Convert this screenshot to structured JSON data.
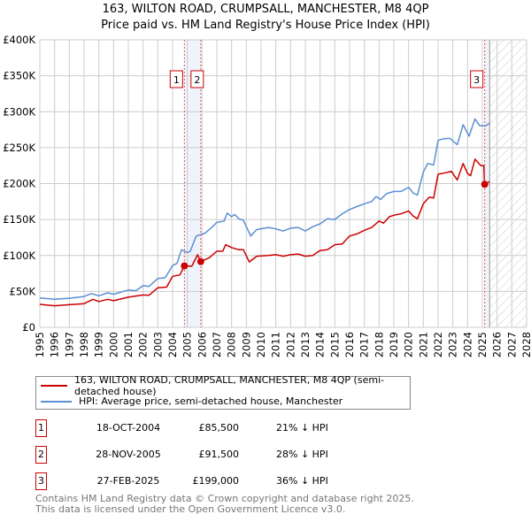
{
  "chart_data": {
    "type": "line",
    "title": "163, WILTON ROAD, CRUMPSALL, MANCHESTER, M8 4QP",
    "subtitle": "Price paid vs. HM Land Registry's House Price Index (HPI)",
    "xlim": [
      1995,
      2028
    ],
    "ylim": [
      0,
      400000
    ],
    "x_ticks": [
      "1995",
      "1996",
      "1997",
      "1998",
      "1999",
      "2000",
      "2001",
      "2002",
      "2003",
      "2004",
      "2005",
      "2006",
      "2007",
      "2008",
      "2009",
      "2010",
      "2011",
      "2012",
      "2013",
      "2014",
      "2015",
      "2016",
      "2017",
      "2018",
      "2019",
      "2020",
      "2021",
      "2022",
      "2023",
      "2024",
      "2025",
      "2026",
      "2027",
      "2028"
    ],
    "y_ticks": [
      {
        "v": 0,
        "label": "£0"
      },
      {
        "v": 50000,
        "label": "£50K"
      },
      {
        "v": 100000,
        "label": "£100K"
      },
      {
        "v": 150000,
        "label": "£150K"
      },
      {
        "v": 200000,
        "label": "£200K"
      },
      {
        "v": 250000,
        "label": "£250K"
      },
      {
        "v": 300000,
        "label": "£300K"
      },
      {
        "v": 350000,
        "label": "£350K"
      },
      {
        "v": 400000,
        "label": "£400K"
      }
    ],
    "grid": true,
    "forecast_from": 2025.5,
    "series": [
      {
        "name": "163, WILTON ROAD, CRUMPSALL, MANCHESTER, M8 4QP (semi-detached house)",
        "color": "#cc0000",
        "points": [
          [
            1995,
            32000
          ],
          [
            1996,
            30000
          ],
          [
            1997,
            31500
          ],
          [
            1998,
            33000
          ],
          [
            1998.6,
            39000
          ],
          [
            1999,
            36000
          ],
          [
            1999.6,
            39000
          ],
          [
            2000,
            37000
          ],
          [
            2001,
            42000
          ],
          [
            2002,
            45000
          ],
          [
            2002.4,
            44500
          ],
          [
            2003,
            55000
          ],
          [
            2003.6,
            56000
          ],
          [
            2004,
            71000
          ],
          [
            2004.5,
            73000
          ],
          [
            2004.8,
            85500
          ],
          [
            2005.3,
            85000
          ],
          [
            2005.7,
            101000
          ],
          [
            2005.9,
            91500
          ],
          [
            2006.5,
            97000
          ],
          [
            2007,
            106000
          ],
          [
            2007.4,
            106000
          ],
          [
            2007.6,
            115000
          ],
          [
            2008,
            111000
          ],
          [
            2008.5,
            108000
          ],
          [
            2008.8,
            108000
          ],
          [
            2009.2,
            91000
          ],
          [
            2009.7,
            99000
          ],
          [
            2010.5,
            100000
          ],
          [
            2011,
            101000
          ],
          [
            2011.5,
            99000
          ],
          [
            2012,
            101000
          ],
          [
            2012.5,
            102000
          ],
          [
            2013,
            99000
          ],
          [
            2013.5,
            100000
          ],
          [
            2014,
            107000
          ],
          [
            2014.5,
            108000
          ],
          [
            2015,
            115000
          ],
          [
            2015.5,
            116000
          ],
          [
            2016,
            127000
          ],
          [
            2016.5,
            130000
          ],
          [
            2017,
            135000
          ],
          [
            2017.5,
            139000
          ],
          [
            2018,
            148000
          ],
          [
            2018.3,
            145000
          ],
          [
            2018.7,
            154000
          ],
          [
            2019,
            156000
          ],
          [
            2019.5,
            158000
          ],
          [
            2020,
            162000
          ],
          [
            2020.3,
            155000
          ],
          [
            2020.6,
            151000
          ],
          [
            2021,
            172000
          ],
          [
            2021.4,
            181000
          ],
          [
            2021.7,
            180000
          ],
          [
            2022,
            213000
          ],
          [
            2022.5,
            215000
          ],
          [
            2022.9,
            217000
          ],
          [
            2023.3,
            205000
          ],
          [
            2023.7,
            228000
          ],
          [
            2024,
            214000
          ],
          [
            2024.2,
            211000
          ],
          [
            2024.5,
            234000
          ],
          [
            2024.9,
            225000
          ],
          [
            2025.1,
            225000
          ],
          [
            2025.15,
            199000
          ],
          [
            2025.5,
            203000
          ]
        ]
      },
      {
        "name": "HPI: Average price, semi-detached house, Manchester",
        "color": "#5b8fd4",
        "points": [
          [
            1995,
            41000
          ],
          [
            1996,
            39000
          ],
          [
            1997,
            40500
          ],
          [
            1998,
            43000
          ],
          [
            1998.5,
            47000
          ],
          [
            1999,
            44000
          ],
          [
            1999.6,
            48000
          ],
          [
            2000,
            46000
          ],
          [
            2001,
            52000
          ],
          [
            2001.5,
            51000
          ],
          [
            2002,
            58000
          ],
          [
            2002.4,
            57000
          ],
          [
            2003,
            68000
          ],
          [
            2003.5,
            69000
          ],
          [
            2004,
            86000
          ],
          [
            2004.3,
            89000
          ],
          [
            2004.6,
            108000
          ],
          [
            2005,
            104000
          ],
          [
            2005.2,
            106000
          ],
          [
            2005.6,
            127000
          ],
          [
            2006.2,
            131000
          ],
          [
            2006.6,
            138000
          ],
          [
            2007,
            146000
          ],
          [
            2007.5,
            148000
          ],
          [
            2007.7,
            159000
          ],
          [
            2008,
            154000
          ],
          [
            2008.2,
            157000
          ],
          [
            2008.5,
            151000
          ],
          [
            2008.8,
            149000
          ],
          [
            2009.3,
            127000
          ],
          [
            2009.7,
            136000
          ],
          [
            2010.5,
            139000
          ],
          [
            2011,
            137000
          ],
          [
            2011.5,
            134000
          ],
          [
            2012,
            138000
          ],
          [
            2012.5,
            139000
          ],
          [
            2013,
            134000
          ],
          [
            2013.5,
            140000
          ],
          [
            2014,
            144000
          ],
          [
            2014.5,
            151000
          ],
          [
            2015,
            150000
          ],
          [
            2015.5,
            158000
          ],
          [
            2016,
            164000
          ],
          [
            2016.5,
            168000
          ],
          [
            2017,
            172000
          ],
          [
            2017.5,
            175000
          ],
          [
            2017.8,
            182000
          ],
          [
            2018.1,
            178000
          ],
          [
            2018.5,
            186000
          ],
          [
            2019,
            189000
          ],
          [
            2019.5,
            189000
          ],
          [
            2020,
            195000
          ],
          [
            2020.3,
            187000
          ],
          [
            2020.6,
            184000
          ],
          [
            2021,
            216000
          ],
          [
            2021.3,
            228000
          ],
          [
            2021.7,
            226000
          ],
          [
            2022,
            260000
          ],
          [
            2022.3,
            262000
          ],
          [
            2022.8,
            263000
          ],
          [
            2023.3,
            254000
          ],
          [
            2023.7,
            282000
          ],
          [
            2024.1,
            266000
          ],
          [
            2024.5,
            290000
          ],
          [
            2024.8,
            281000
          ],
          [
            2025.2,
            280000
          ],
          [
            2025.5,
            284000
          ]
        ]
      }
    ],
    "sales": [
      {
        "num": "1",
        "x": 2004.8,
        "value": 85500,
        "date": "18-OCT-2004",
        "price": "£85,500",
        "hpi": "21% ↓ HPI"
      },
      {
        "num": "2",
        "x": 2005.91,
        "value": 91500,
        "date": "28-NOV-2005",
        "price": "£91,500",
        "hpi": "28% ↓ HPI"
      },
      {
        "num": "3",
        "x": 2025.16,
        "value": 199000,
        "date": "27-FEB-2025",
        "price": "£199,000",
        "hpi": "36% ↓ HPI"
      }
    ],
    "legend_placement": "below"
  },
  "footer": {
    "line1": "Contains HM Land Registry data © Crown copyright and database right 2025.",
    "line2": "This data is licensed under the Open Government Licence v3.0."
  }
}
